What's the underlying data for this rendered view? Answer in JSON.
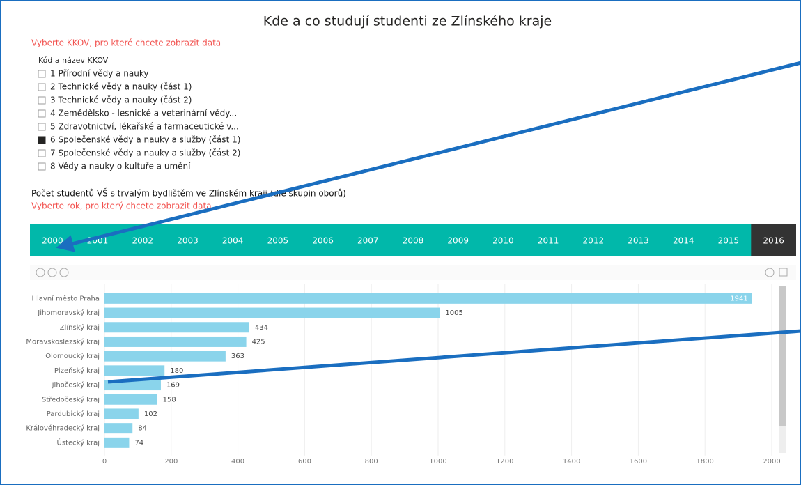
{
  "header": {
    "title": "Kde a co studují studenti ze Zlínského kraje"
  },
  "filter": {
    "prompt": "Vyberte KKOV, pro které chcete zobrazit data",
    "heading": "Kód a název KKOV",
    "items": [
      {
        "label": "1 Přírodní vědy a nauky",
        "checked": false
      },
      {
        "label": "2 Technické vědy a nauky (část 1)",
        "checked": false
      },
      {
        "label": "3 Technické vědy a nauky (část 2)",
        "checked": false
      },
      {
        "label": "4 Zemědělsko - lesnické a veterinární vědy...",
        "checked": false
      },
      {
        "label": "5 Zdravotnictví, lékařské a farmaceutické v...",
        "checked": false
      },
      {
        "label": "6 Společenské vědy a nauky a služby (část 1)",
        "checked": true
      },
      {
        "label": "7 Společenské vědy a nauky a služby (část 2)",
        "checked": false
      },
      {
        "label": "8 Vědy a nauky o kultuře a umění",
        "checked": false
      }
    ]
  },
  "section": {
    "title": "Počet studentů VŠ s trvalým bydlištěm ve Zlínském kraji (dle skupin oborů)",
    "prompt": "Vyberte rok, pro který chcete zobrazit data"
  },
  "years": {
    "items": [
      "2000",
      "2001",
      "2002",
      "2003",
      "2004",
      "2005",
      "2006",
      "2007",
      "2008",
      "2009",
      "2010",
      "2011",
      "2012",
      "2013",
      "2014",
      "2015",
      "2016"
    ],
    "selected": 16
  },
  "chart_data": {
    "type": "hbar",
    "categories": [
      "Hlavní město Praha",
      "Jihomoravský kraj",
      "Zlínský kraj",
      "Moravskoslezský kraj",
      "Olomoucký kraj",
      "Plzeňský kraj",
      "Jihočeský kraj",
      "Středočeský kraj",
      "Pardubický kraj",
      "Královéhradecký kraj",
      "Ústecký kraj"
    ],
    "values": [
      1941,
      1005,
      434,
      425,
      363,
      180,
      169,
      158,
      102,
      84,
      74
    ],
    "color": "#8ad4eb",
    "xlim": [
      0,
      2000
    ],
    "xticks": [
      0,
      200,
      400,
      600,
      800,
      1000,
      1200,
      1400,
      1600,
      1800,
      2000
    ],
    "grid": true
  }
}
